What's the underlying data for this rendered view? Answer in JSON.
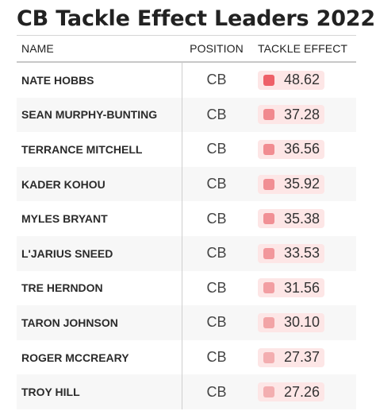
{
  "title": "CB Tackle Effect Leaders 2022",
  "columns": {
    "name": "NAME",
    "position": "POSITION",
    "tackle_effect": "TACKLE EFFECT"
  },
  "colors": {
    "pill_bg": "#fde6e6",
    "swatch_max": "#ee6068",
    "swatch_min": "#f3aeb0"
  },
  "rows": [
    {
      "name": "NATE HOBBS",
      "position": "CB",
      "tackle_effect": "48.62"
    },
    {
      "name": "SEAN MURPHY-BUNTING",
      "position": "CB",
      "tackle_effect": "37.28"
    },
    {
      "name": "TERRANCE MITCHELL",
      "position": "CB",
      "tackle_effect": "36.56"
    },
    {
      "name": "KADER KOHOU",
      "position": "CB",
      "tackle_effect": "35.92"
    },
    {
      "name": "MYLES BRYANT",
      "position": "CB",
      "tackle_effect": "35.38"
    },
    {
      "name": "L'JARIUS SNEED",
      "position": "CB",
      "tackle_effect": "33.53"
    },
    {
      "name": "TRE HERNDON",
      "position": "CB",
      "tackle_effect": "31.56"
    },
    {
      "name": "TARON JOHNSON",
      "position": "CB",
      "tackle_effect": "30.10"
    },
    {
      "name": "ROGER MCCREARY",
      "position": "CB",
      "tackle_effect": "27.37"
    },
    {
      "name": "TROY HILL",
      "position": "CB",
      "tackle_effect": "27.26"
    }
  ]
}
